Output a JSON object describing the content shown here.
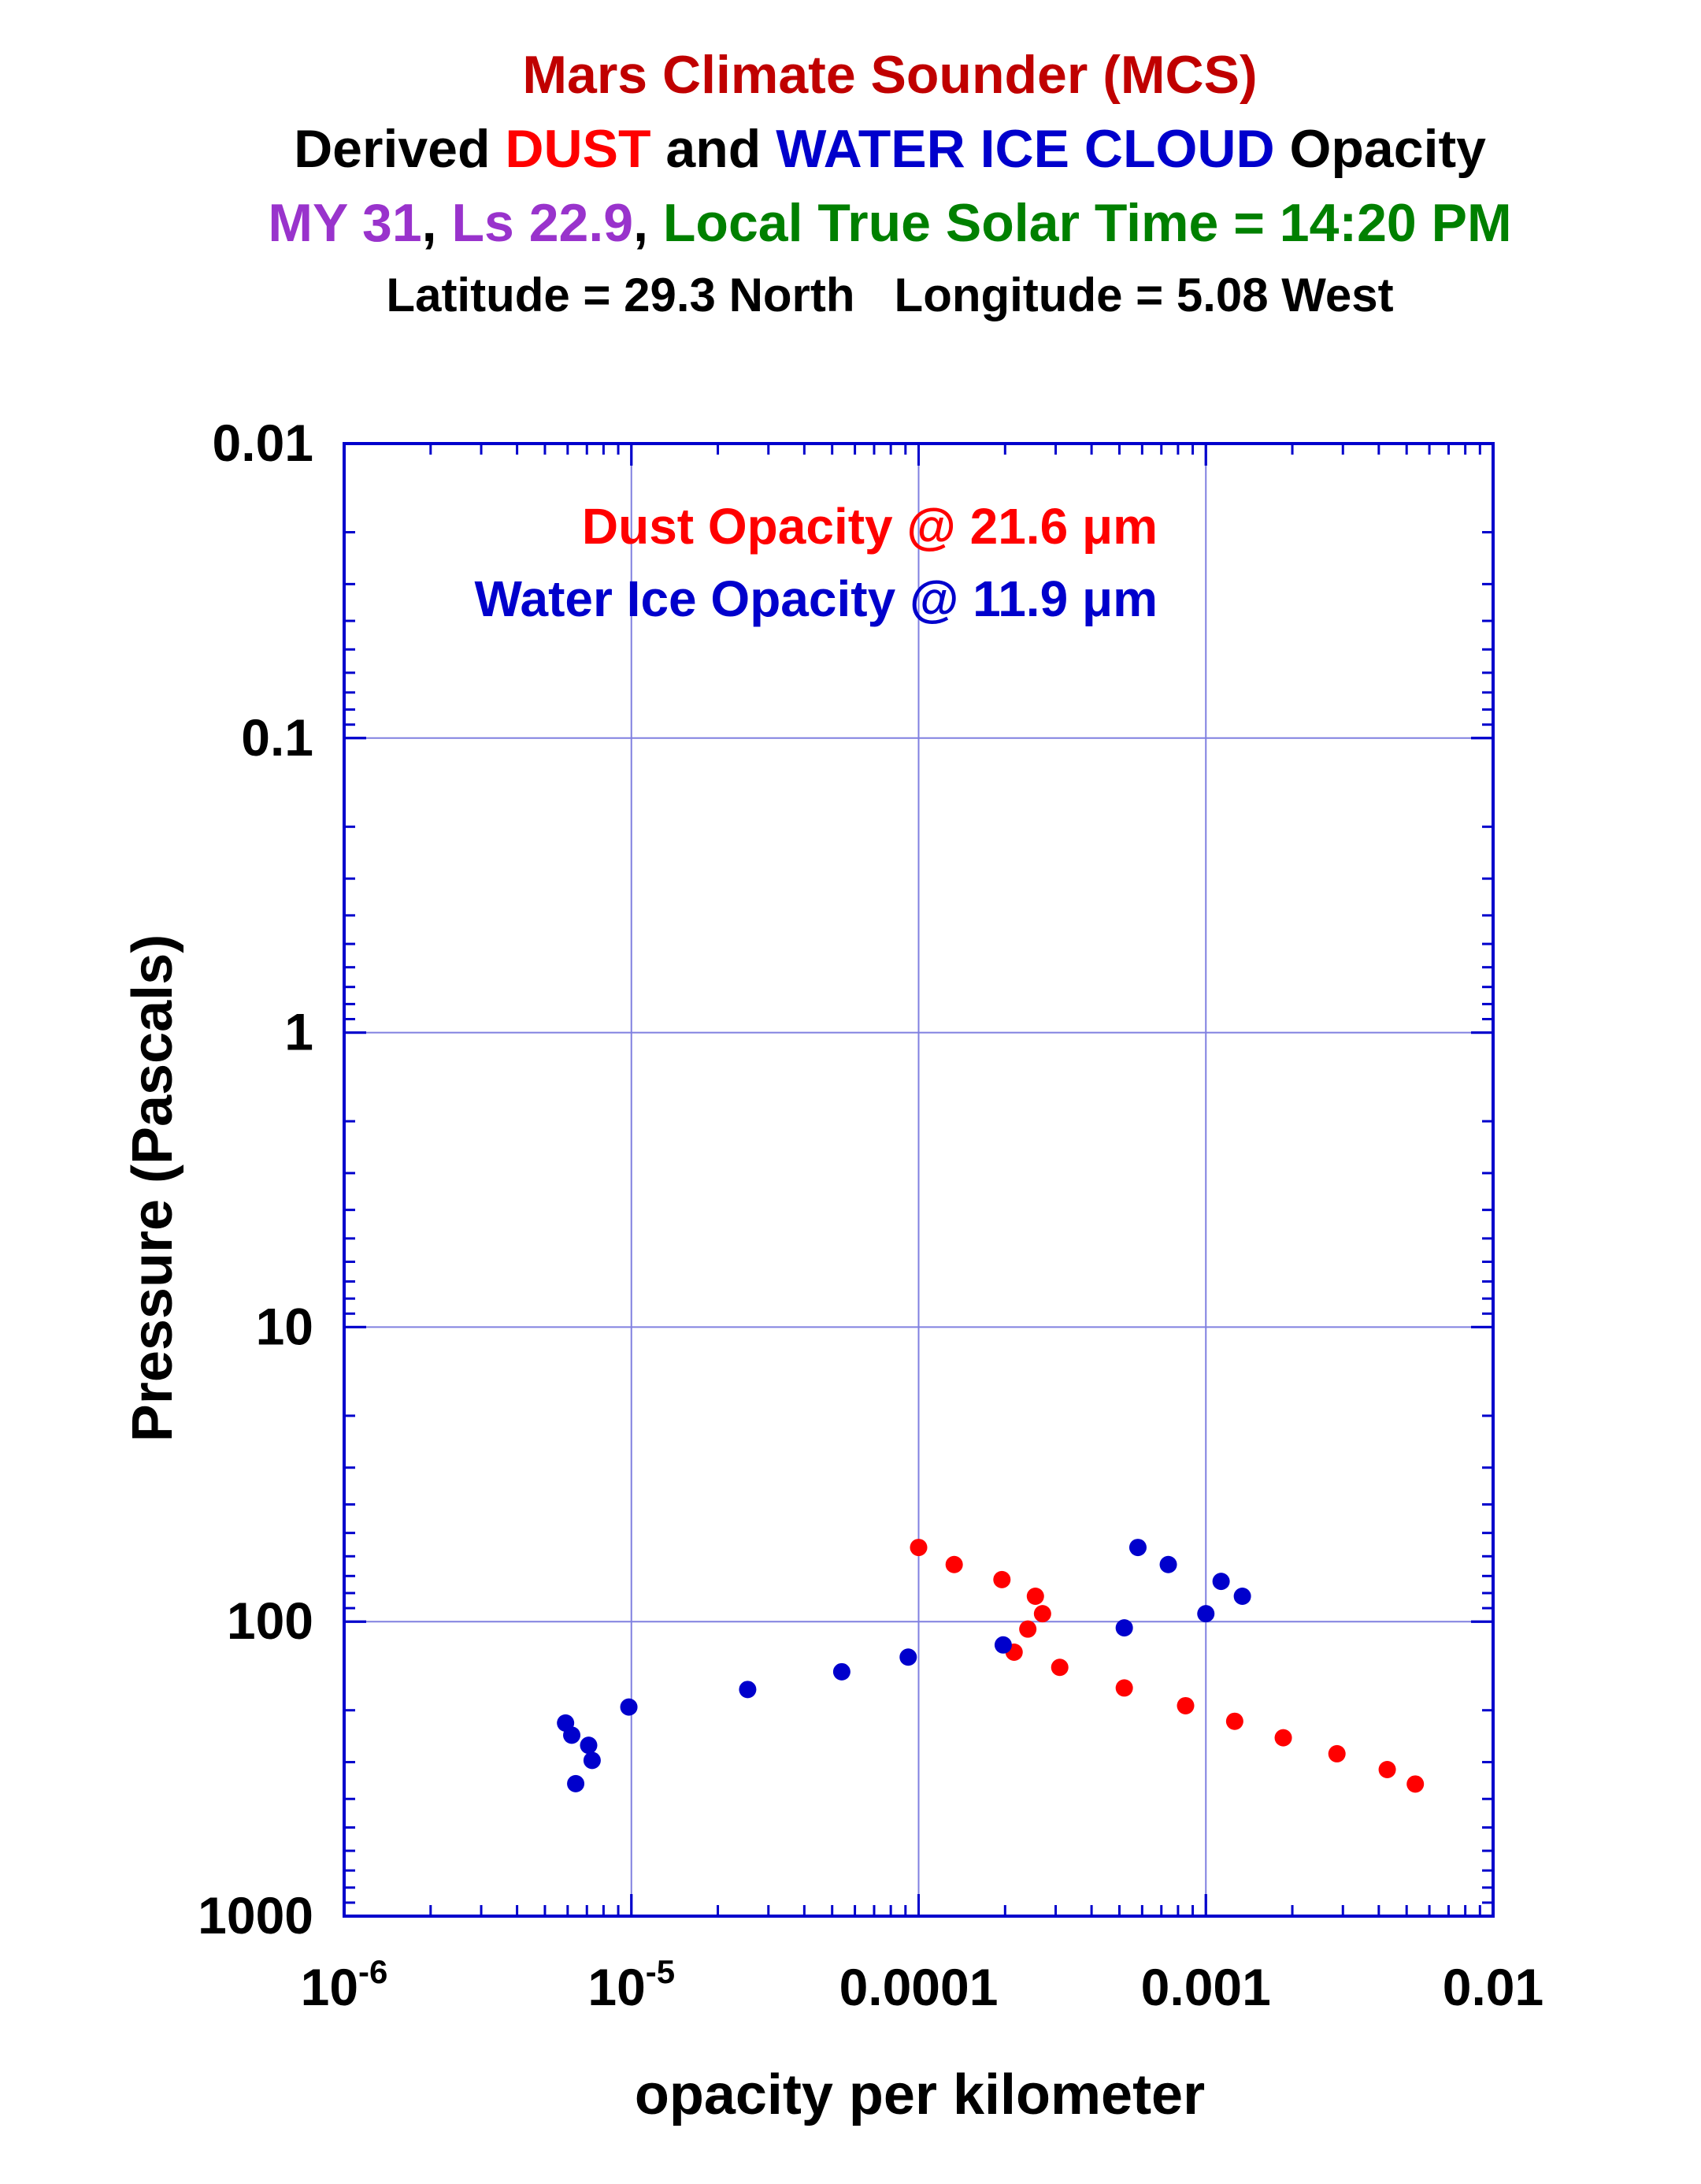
{
  "title": {
    "line1": "Mars Climate Sounder (MCS)",
    "line2_a": "Derived ",
    "line2_b": "DUST",
    "line2_c": " and ",
    "line2_d": "WATER ICE CLOUD",
    "line2_e": " Opacity",
    "line3_a": "MY 31",
    "line3_b": ", ",
    "line3_c": "Ls 22.9",
    "line3_d": ", ",
    "line3_e": "Local True Solar Time = 14:20 PM",
    "line4": "Latitude = 29.3 North   Longitude = 5.08 West"
  },
  "colors": {
    "title_red": "#c00000",
    "dust": "#ff0000",
    "ice": "#0000cc",
    "purple": "#9933cc",
    "green": "#008000",
    "axis": "#0000cc",
    "grid": "#8080e0"
  },
  "chart_data": {
    "type": "scatter",
    "xlabel": "opacity per kilometer",
    "ylabel": "Pressure (Pascals)",
    "xscale": "log",
    "yscale": "log",
    "y_inverted": true,
    "xlim": [
      1e-06,
      0.01
    ],
    "ylim": [
      0.01,
      1000
    ],
    "grid": true,
    "x_ticks": [
      {
        "value": 1e-06,
        "base": "10",
        "exp": "-6"
      },
      {
        "value": 1e-05,
        "base": "10",
        "exp": "-5"
      },
      {
        "value": 0.0001,
        "label": "0.0001"
      },
      {
        "value": 0.001,
        "label": "0.001"
      },
      {
        "value": 0.01,
        "label": "0.01"
      }
    ],
    "y_ticks": [
      {
        "value": 0.01,
        "label": "0.01"
      },
      {
        "value": 0.1,
        "label": "0.1"
      },
      {
        "value": 1,
        "label": "1"
      },
      {
        "value": 10,
        "label": "10"
      },
      {
        "value": 100,
        "label": "100"
      },
      {
        "value": 1000,
        "label": "1000"
      }
    ],
    "legend": {
      "placement": "top-left",
      "dust": "Dust Opacity @ 21.6 μm",
      "ice": "Water Ice Opacity @ 11.9 μm"
    },
    "series": [
      {
        "name": "Dust Opacity @ 21.6 μm",
        "color": "#ff0000",
        "points": [
          {
            "x": 0.0001,
            "y": 56
          },
          {
            "x": 0.000133,
            "y": 64
          },
          {
            "x": 0.000195,
            "y": 72
          },
          {
            "x": 0.000255,
            "y": 82
          },
          {
            "x": 0.00027,
            "y": 94
          },
          {
            "x": 0.00024,
            "y": 106
          },
          {
            "x": 0.000215,
            "y": 127
          },
          {
            "x": 0.00031,
            "y": 143
          },
          {
            "x": 0.00052,
            "y": 168
          },
          {
            "x": 0.00085,
            "y": 193
          },
          {
            "x": 0.00126,
            "y": 218
          },
          {
            "x": 0.00186,
            "y": 248
          },
          {
            "x": 0.00286,
            "y": 281
          },
          {
            "x": 0.00428,
            "y": 318
          },
          {
            "x": 0.00536,
            "y": 356
          }
        ]
      },
      {
        "name": "Water Ice Opacity @ 11.9 μm",
        "color": "#0000cc",
        "points": [
          {
            "x": 0.00058,
            "y": 56
          },
          {
            "x": 0.00074,
            "y": 64
          },
          {
            "x": 0.00113,
            "y": 73
          },
          {
            "x": 0.00134,
            "y": 82
          },
          {
            "x": 0.001,
            "y": 94
          },
          {
            "x": 0.00052,
            "y": 105
          },
          {
            "x": 0.000197,
            "y": 120
          },
          {
            "x": 9.2e-05,
            "y": 132
          },
          {
            "x": 5.4e-05,
            "y": 148
          },
          {
            "x": 2.54e-05,
            "y": 170
          },
          {
            "x": 9.8e-06,
            "y": 195
          },
          {
            "x": 5.9e-06,
            "y": 221
          },
          {
            "x": 6.2e-06,
            "y": 243
          },
          {
            "x": 7.1e-06,
            "y": 263
          },
          {
            "x": 7.3e-06,
            "y": 296
          },
          {
            "x": 6.4e-06,
            "y": 355
          }
        ]
      }
    ]
  }
}
